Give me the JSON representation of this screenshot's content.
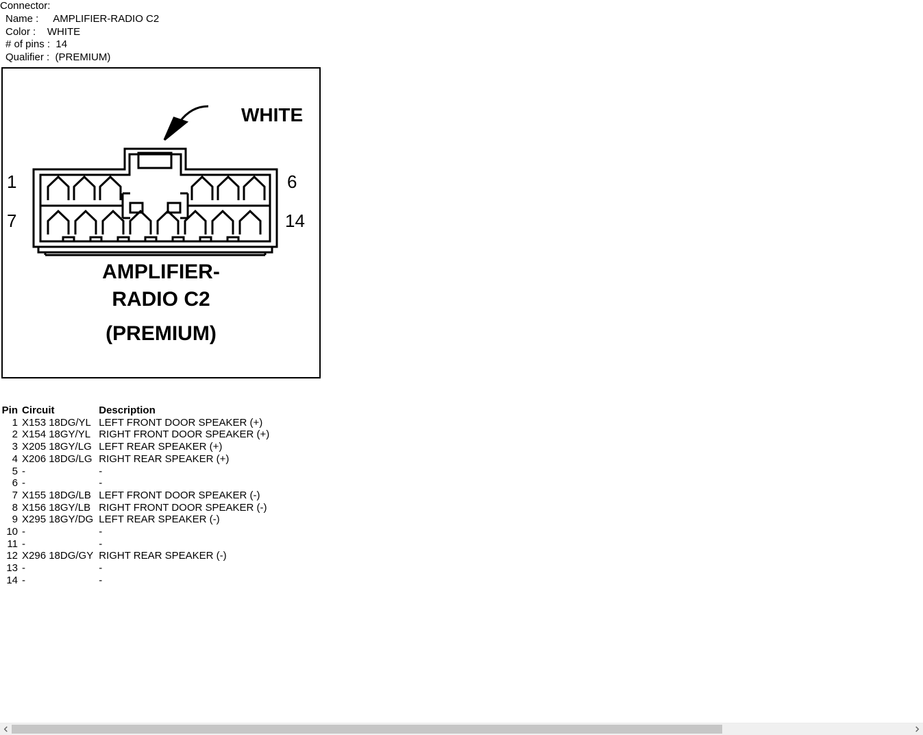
{
  "header": {
    "title": "Connector:",
    "props": [
      {
        "label": "Name :     ",
        "value": "AMPLIFIER-RADIO C2"
      },
      {
        "label": "Color :    ",
        "value": "WHITE"
      },
      {
        "label": "# of pins :  ",
        "value": "14"
      },
      {
        "label": "Qualifier :  ",
        "value": "(PREMIUM)"
      }
    ]
  },
  "diagram": {
    "stroke": "#000000",
    "bg": "#ffffff",
    "color_label": "WHITE",
    "pin_labels": {
      "top_left": "1",
      "top_right": "6",
      "bottom_left": "7",
      "bottom_right": "14"
    },
    "caption_lines": [
      "AMPLIFIER-",
      "RADIO C2",
      "(PREMIUM)"
    ],
    "label_font_size_color": 28,
    "label_font_weight_color": "bold",
    "label_font_size_pin": 26,
    "caption_font_size": 30,
    "caption_font_weight": "bold"
  },
  "table": {
    "columns": [
      "Pin",
      "Circuit",
      "Description"
    ],
    "rows": [
      [
        "1",
        "X153 18DG/YL",
        "LEFT FRONT DOOR SPEAKER (+)"
      ],
      [
        "2",
        "X154 18GY/YL",
        "RIGHT FRONT DOOR SPEAKER (+)"
      ],
      [
        "3",
        "X205 18GY/LG",
        "LEFT REAR SPEAKER (+)"
      ],
      [
        "4",
        "X206 18DG/LG",
        "RIGHT REAR SPEAKER (+)"
      ],
      [
        "5",
        "-",
        "-"
      ],
      [
        "6",
        "-",
        "-"
      ],
      [
        "7",
        "X155 18DG/LB",
        "LEFT FRONT DOOR SPEAKER (-)"
      ],
      [
        "8",
        "X156 18GY/LB",
        "RIGHT FRONT DOOR SPEAKER (-)"
      ],
      [
        "9",
        "X295 18GY/DG",
        "LEFT REAR SPEAKER (-)"
      ],
      [
        "10",
        "-",
        "-"
      ],
      [
        "11",
        "-",
        "-"
      ],
      [
        "12",
        "X296 18DG/GY",
        "RIGHT REAR SPEAKER (-)"
      ],
      [
        "13",
        "-",
        "-"
      ],
      [
        "14",
        "-",
        "-"
      ]
    ]
  },
  "scrollbar": {
    "track_bg": "#f0f0f0",
    "thumb_bg": "#c6c6c6",
    "thumb_width_pct": 79
  }
}
